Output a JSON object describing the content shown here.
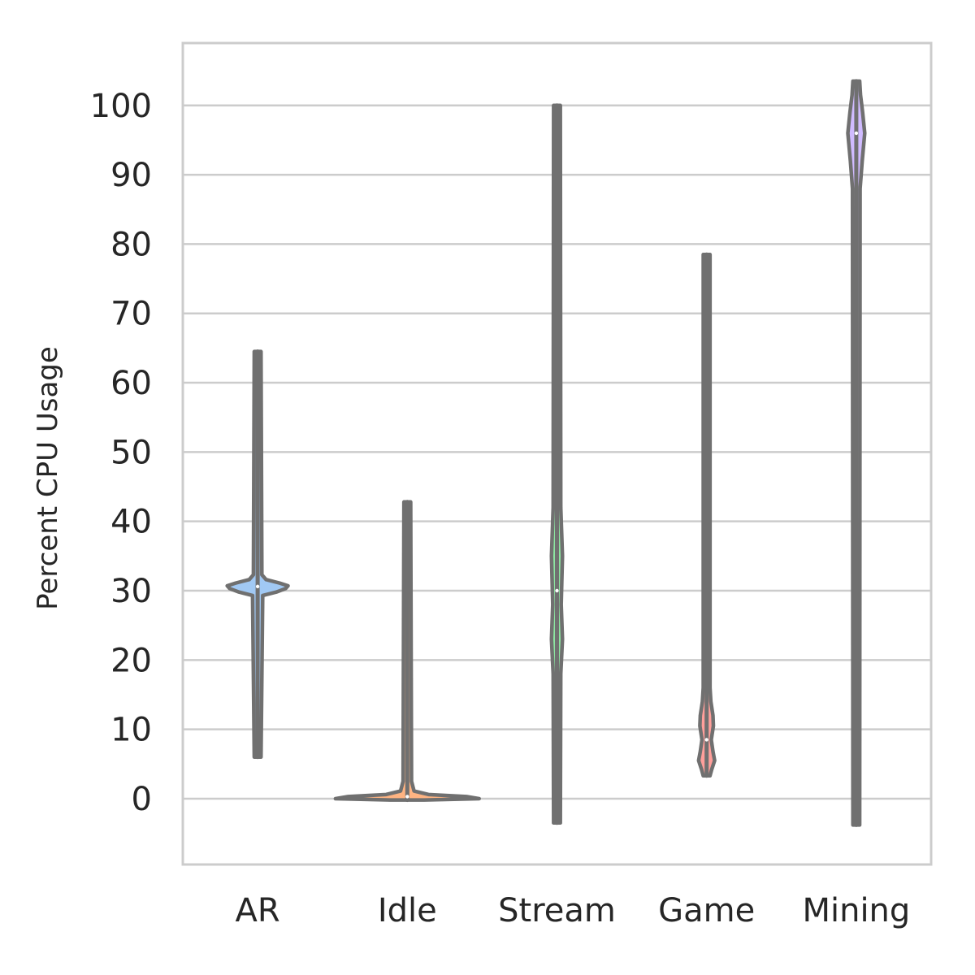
{
  "chart_data": {
    "type": "violin",
    "title": "",
    "xlabel": "",
    "ylabel": "Percent CPU Usage",
    "ylim": [
      -9.5,
      109
    ],
    "yticks": [
      0,
      10,
      20,
      30,
      40,
      50,
      60,
      70,
      80,
      90,
      100
    ],
    "grid": "horizontal",
    "outline_color": "#707070",
    "categories": [
      "AR",
      "Idle",
      "Stream",
      "Game",
      "Mining"
    ],
    "violins": [
      {
        "category": "AR",
        "fill_color": "#a1c9f4",
        "min": 6,
        "max": 64.5,
        "median": 30.6,
        "profile": [
          [
            6,
            0.4
          ],
          [
            29.3,
            0.6
          ],
          [
            29.8,
            2.2
          ],
          [
            30.3,
            3.3
          ],
          [
            30.7,
            3.6
          ],
          [
            31.1,
            2.6
          ],
          [
            31.6,
            1.0
          ],
          [
            32.3,
            0.5
          ],
          [
            64.5,
            0.4
          ]
        ]
      },
      {
        "category": "Idle",
        "fill_color": "#ffb482",
        "min": -0.2,
        "max": 42.8,
        "median": 0.3,
        "profile": [
          [
            -0.2,
            2.0
          ],
          [
            0,
            8.5
          ],
          [
            0.3,
            7.0
          ],
          [
            0.6,
            2.5
          ],
          [
            1.1,
            0.8
          ],
          [
            2.5,
            0.5
          ],
          [
            42.8,
            0.4
          ]
        ]
      },
      {
        "category": "Stream",
        "fill_color": "#8de5a1",
        "min": -3.5,
        "max": 100,
        "median": 30,
        "profile": [
          [
            -3.5,
            0.4
          ],
          [
            18,
            0.45
          ],
          [
            23,
            0.65
          ],
          [
            28,
            0.5
          ],
          [
            35,
            0.65
          ],
          [
            42,
            0.45
          ],
          [
            100,
            0.4
          ]
        ]
      },
      {
        "category": "Game",
        "fill_color": "#ff9f9b",
        "min": 3.3,
        "max": 78.5,
        "median": 8.5,
        "profile": [
          [
            3.3,
            0.4
          ],
          [
            4.2,
            0.6
          ],
          [
            5.5,
            0.95
          ],
          [
            6.8,
            0.75
          ],
          [
            8.5,
            0.55
          ],
          [
            10.5,
            0.8
          ],
          [
            12,
            0.75
          ],
          [
            14,
            0.5
          ],
          [
            16,
            0.4
          ],
          [
            78.5,
            0.4
          ]
        ]
      },
      {
        "category": "Mining",
        "fill_color": "#d0bbff",
        "min": -3.8,
        "max": 103.5,
        "median": 96,
        "profile": [
          [
            -3.8,
            0.4
          ],
          [
            88,
            0.45
          ],
          [
            92,
            0.7
          ],
          [
            96,
            1.0
          ],
          [
            99,
            0.75
          ],
          [
            101.5,
            0.5
          ],
          [
            103.5,
            0.4
          ]
        ]
      }
    ]
  }
}
